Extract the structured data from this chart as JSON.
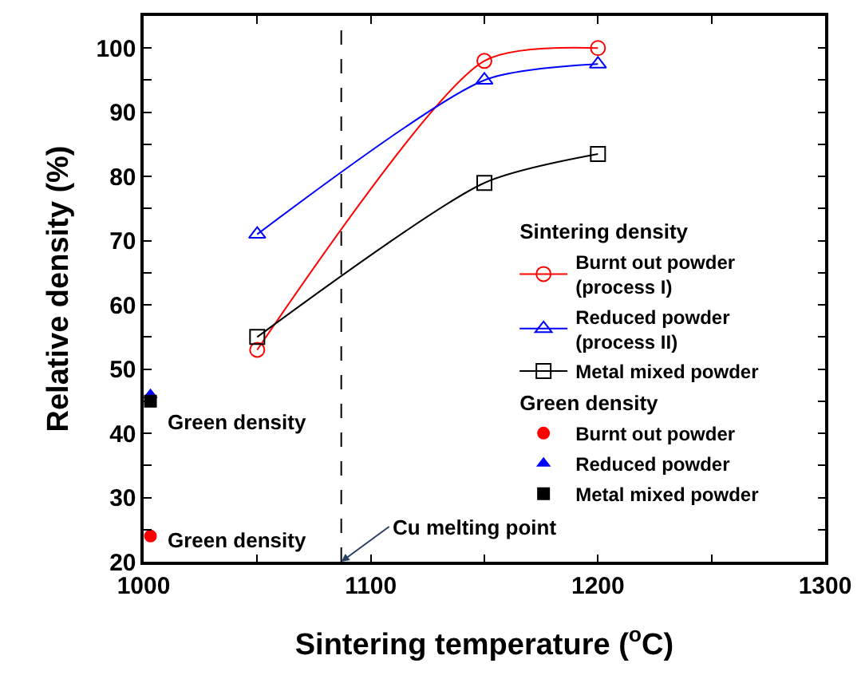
{
  "chart_data": {
    "type": "line",
    "xlabel": "Sintering temperature ($^{o}$C)",
    "ylabel": "Relative density (%)",
    "legend_title": [
      "Sintering density",
      "Green density"
    ],
    "xlim": [
      1000,
      1300
    ],
    "xticks": [
      1000,
      {
        "value": 1050,
        "label": null
      },
      1100,
      {
        "value": 1150,
        "label": null
      },
      1200,
      {
        "value": 1250,
        "label": null
      },
      1300
    ],
    "ylim": [
      20,
      105
    ],
    "yticks": [
      20,
      {
        "value": 25,
        "label": null
      },
      30,
      {
        "value": 35,
        "label": null
      },
      40,
      {
        "value": 45,
        "label": null
      },
      50,
      {
        "value": 55,
        "label": null
      },
      60,
      {
        "value": 65,
        "label": null
      },
      70,
      {
        "value": 75,
        "label": null
      },
      80,
      {
        "value": 85,
        "label": null
      },
      90,
      {
        "value": 95,
        "label": null
      },
      100
    ],
    "legend": "right",
    "series": [
      {
        "name": "Burnt out powder\n(process I)",
        "color": "#ff0000",
        "marker": "circle",
        "x": [
          1050,
          1150,
          1200
        ],
        "values": [
          53,
          98,
          100
        ]
      },
      {
        "name": "Reduced powder\n(process II)",
        "color": "#0000ff",
        "marker": "triangle",
        "x": [
          1050,
          1150,
          1200
        ],
        "values": [
          71,
          95,
          97.5
        ]
      },
      {
        "name": "Metal mixed powder",
        "color": "#000000",
        "marker": "square",
        "x": [
          1050,
          1150,
          1200
        ],
        "values": [
          55,
          79,
          83.5
        ]
      },
      {
        "name": "Burnt out powder",
        "type": "scatter",
        "color": "#ff0000",
        "marker": "circle",
        "x": [
          1003
        ],
        "values": [
          24
        ]
      },
      {
        "name": "Reduced powder",
        "type": "scatter",
        "color": "#0000ff",
        "marker": "triangle",
        "x": [
          1003
        ],
        "values": [
          46
        ]
      },
      {
        "name": "Metal mixed powder",
        "type": "scatter",
        "color": "#000000",
        "marker": "square",
        "x": [
          1003
        ],
        "values": [
          45
        ]
      }
    ],
    "ref_lines": [
      {
        "axis": "x",
        "value": 1087,
        "color": "#000000",
        "line_style": "dashed",
        "label": "Cu melting point"
      }
    ],
    "annotations": [
      "Green density",
      "Green density"
    ]
  }
}
